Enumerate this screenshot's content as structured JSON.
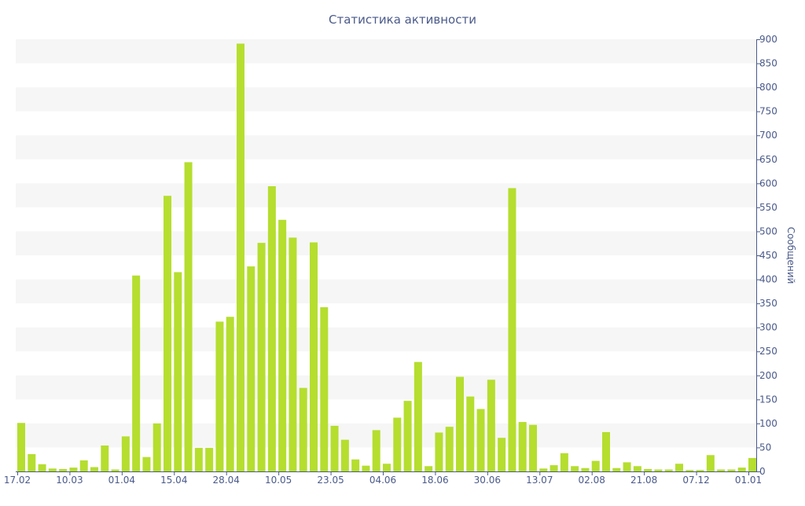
{
  "chart_data": {
    "type": "bar",
    "title": "Статистика активности",
    "xlabel": "",
    "ylabel": "Сообщений",
    "ylim": [
      0,
      900
    ],
    "y_ticks": [
      0,
      50,
      100,
      150,
      200,
      250,
      300,
      350,
      400,
      450,
      500,
      550,
      600,
      650,
      700,
      750,
      800,
      850,
      900
    ],
    "y_axis_position": "right",
    "grid": "horizontal alternating bands",
    "legend": "none",
    "x_tick_labels": [
      {
        "index": 0,
        "label": "17.02"
      },
      {
        "index": 5,
        "label": "10.03"
      },
      {
        "index": 10,
        "label": "01.04"
      },
      {
        "index": 15,
        "label": "15.04"
      },
      {
        "index": 20,
        "label": "28.04"
      },
      {
        "index": 25,
        "label": "10.05"
      },
      {
        "index": 30,
        "label": "23.05"
      },
      {
        "index": 35,
        "label": "04.06"
      },
      {
        "index": 40,
        "label": "18.06"
      },
      {
        "index": 45,
        "label": "30.06"
      },
      {
        "index": 50,
        "label": "13.07"
      },
      {
        "index": 55,
        "label": "02.08"
      },
      {
        "index": 60,
        "label": "21.08"
      },
      {
        "index": 65,
        "label": "07.12"
      },
      {
        "index": 70,
        "label": "01.01"
      }
    ],
    "values": [
      101,
      36,
      15,
      6,
      5,
      8,
      23,
      9,
      54,
      4,
      73,
      408,
      30,
      100,
      574,
      415,
      644,
      49,
      49,
      312,
      322,
      891,
      427,
      476,
      594,
      524,
      487,
      174,
      477,
      342,
      95,
      66,
      25,
      12,
      86,
      16,
      112,
      147,
      228,
      11,
      81,
      93,
      197,
      156,
      130,
      191,
      70,
      590,
      103,
      97,
      6,
      13,
      38,
      11,
      7,
      22,
      82,
      7,
      19,
      11,
      5,
      4,
      4,
      16,
      3,
      3,
      34,
      4,
      4,
      8,
      28
    ],
    "colors": {
      "bar": "#b5de2f",
      "text": "#4a5a8a",
      "axis": "#4a5a8a",
      "band": "#f6f6f6"
    }
  }
}
